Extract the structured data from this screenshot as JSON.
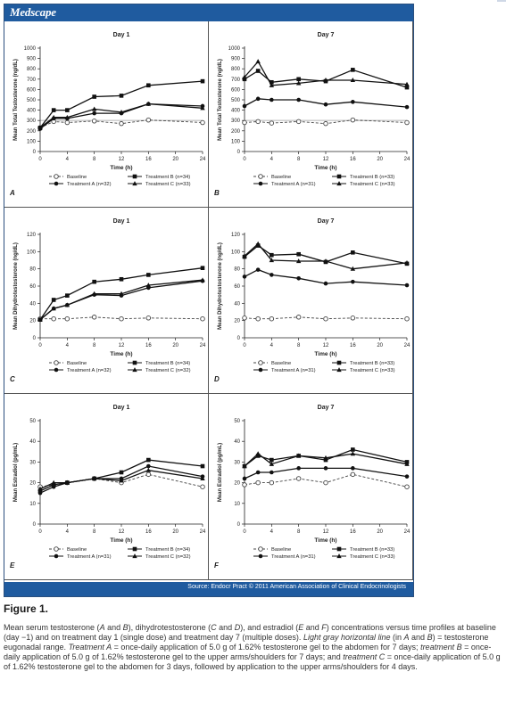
{
  "header": {
    "logo": "Medscape"
  },
  "footer": {
    "source": "Source: Endocr Pract © 2011 American Association of Clinical Endocrinologists"
  },
  "figure": {
    "title": "Figure 1.",
    "caption": [
      {
        "t": "Mean serum testosterone ("
      },
      {
        "t": "A",
        "i": true
      },
      {
        "t": " and "
      },
      {
        "t": "B",
        "i": true
      },
      {
        "t": "), dihydrotestosterone ("
      },
      {
        "t": "C",
        "i": true
      },
      {
        "t": " and "
      },
      {
        "t": "D",
        "i": true
      },
      {
        "t": "), and estradiol ("
      },
      {
        "t": "E",
        "i": true
      },
      {
        "t": " and "
      },
      {
        "t": "F",
        "i": true
      },
      {
        "t": ") concentrations versus time profiles at baseline (day −1) and on treatment day 1 (single dose) and treatment day 7 (multiple doses). "
      },
      {
        "t": "Light gray horizontal line",
        "i": true
      },
      {
        "t": " (in "
      },
      {
        "t": "A",
        "i": true
      },
      {
        "t": " and "
      },
      {
        "t": "B",
        "i": true
      },
      {
        "t": ") = testosterone eugonadal range. "
      },
      {
        "t": "Treatment A",
        "i": true
      },
      {
        "t": " = once-daily application of 5.0 g of 1.62% testosterone gel to the abdomen for 7 days; "
      },
      {
        "t": "treatment B",
        "i": true
      },
      {
        "t": " = once-daily application of 5.0 g of 1.62% testosterone gel to the upper arms/shoulders for 7 days; and "
      },
      {
        "t": "treatment C",
        "i": true
      },
      {
        "t": " = once-daily application of 5.0 g of 1.62% testosterone gel to the abdomen for 3 days, followed by application to the upper arms/shoulders for 4 days."
      }
    ]
  },
  "colors": {
    "brand": "#1f5b9f",
    "line": "#111111",
    "baseline": "#444444",
    "eugonadal": "#c8c8c8"
  },
  "chart_data": [
    {
      "panel": "A",
      "type": "line",
      "title": "Day 1",
      "xlabel": "Time (h)",
      "ylabel": "Mean Total Testosterone (ng/dL)",
      "xlim": [
        0,
        24
      ],
      "ylim": [
        0,
        1000
      ],
      "xticks": [
        0,
        4,
        8,
        12,
        16,
        20,
        24
      ],
      "yticks": [
        0,
        100,
        200,
        300,
        400,
        500,
        600,
        700,
        800,
        900,
        1000
      ],
      "reference_line": 300,
      "series": [
        {
          "name": "Baseline",
          "style": "baseline",
          "x": [
            0,
            2,
            4,
            8,
            12,
            16,
            24
          ],
          "y": [
            230,
            290,
            280,
            295,
            270,
            305,
            280
          ]
        },
        {
          "name": "Treatment A (n=32)",
          "style": "circle",
          "x": [
            0,
            2,
            4,
            8,
            12,
            16,
            24
          ],
          "y": [
            220,
            320,
            320,
            370,
            370,
            460,
            440
          ]
        },
        {
          "name": "Treatment B (n=34)",
          "style": "square",
          "x": [
            0,
            2,
            4,
            8,
            12,
            16,
            24
          ],
          "y": [
            230,
            400,
            400,
            530,
            540,
            640,
            680
          ]
        },
        {
          "name": "Treatment C (n=33)",
          "style": "triangle",
          "x": [
            0,
            2,
            4,
            8,
            12,
            16,
            24
          ],
          "y": [
            230,
            330,
            330,
            410,
            380,
            460,
            420
          ]
        }
      ]
    },
    {
      "panel": "B",
      "type": "line",
      "title": "Day 7",
      "xlabel": "Time (h)",
      "ylabel": "Mean Total Testosterone (ng/dL)",
      "xlim": [
        0,
        24
      ],
      "ylim": [
        0,
        1000
      ],
      "xticks": [
        0,
        4,
        8,
        12,
        16,
        20,
        24
      ],
      "yticks": [
        0,
        100,
        200,
        300,
        400,
        500,
        600,
        700,
        800,
        900,
        1000
      ],
      "reference_line": 300,
      "series": [
        {
          "name": "Baseline",
          "style": "baseline",
          "x": [
            0,
            2,
            4,
            8,
            12,
            16,
            24
          ],
          "y": [
            280,
            290,
            275,
            290,
            270,
            305,
            280
          ]
        },
        {
          "name": "Treatment A (n=31)",
          "style": "circle",
          "x": [
            0,
            2,
            4,
            8,
            12,
            16,
            24
          ],
          "y": [
            440,
            510,
            500,
            500,
            455,
            480,
            430
          ]
        },
        {
          "name": "Treatment B (n=33)",
          "style": "square",
          "x": [
            0,
            2,
            4,
            8,
            12,
            16,
            24
          ],
          "y": [
            700,
            780,
            670,
            700,
            680,
            790,
            620
          ]
        },
        {
          "name": "Treatment C (n=33)",
          "style": "triangle",
          "x": [
            0,
            2,
            4,
            8,
            12,
            16,
            24
          ],
          "y": [
            720,
            870,
            640,
            660,
            690,
            690,
            650
          ]
        }
      ]
    },
    {
      "panel": "C",
      "type": "line",
      "title": "Day 1",
      "xlabel": "Time (h)",
      "ylabel": "Mean Dihydrotestosterone (ng/dL)",
      "xlim": [
        0,
        24
      ],
      "ylim": [
        0,
        120
      ],
      "xticks": [
        0,
        4,
        8,
        12,
        16,
        20,
        24
      ],
      "yticks": [
        0,
        20,
        40,
        60,
        80,
        100,
        120
      ],
      "series": [
        {
          "name": "Baseline",
          "style": "baseline",
          "x": [
            0,
            2,
            4,
            8,
            12,
            16,
            24
          ],
          "y": [
            22,
            22,
            22,
            24,
            22,
            23,
            22
          ]
        },
        {
          "name": "Treatment A (n=32)",
          "style": "circle",
          "x": [
            0,
            2,
            4,
            8,
            12,
            16,
            24
          ],
          "y": [
            21,
            34,
            38,
            50,
            49,
            58,
            66
          ]
        },
        {
          "name": "Treatment B (n=34)",
          "style": "square",
          "x": [
            0,
            2,
            4,
            8,
            12,
            16,
            24
          ],
          "y": [
            21,
            44,
            49,
            65,
            68,
            73,
            81
          ]
        },
        {
          "name": "Treatment C (n=32)",
          "style": "triangle",
          "x": [
            0,
            2,
            4,
            8,
            12,
            16,
            24
          ],
          "y": [
            21,
            34,
            38,
            51,
            51,
            61,
            67
          ]
        }
      ]
    },
    {
      "panel": "D",
      "type": "line",
      "title": "Day 7",
      "xlabel": "Time (h)",
      "ylabel": "Mean Dihydrotestosterone (ng/dL)",
      "xlim": [
        0,
        24
      ],
      "ylim": [
        0,
        120
      ],
      "xticks": [
        0,
        4,
        8,
        12,
        16,
        20,
        24
      ],
      "yticks": [
        0,
        20,
        40,
        60,
        80,
        100,
        120
      ],
      "series": [
        {
          "name": "Baseline",
          "style": "baseline",
          "x": [
            0,
            2,
            4,
            8,
            12,
            16,
            24
          ],
          "y": [
            23,
            22,
            22,
            24,
            22,
            23,
            22
          ]
        },
        {
          "name": "Treatment A (n=31)",
          "style": "circle",
          "x": [
            0,
            2,
            4,
            8,
            12,
            16,
            24
          ],
          "y": [
            71,
            79,
            73,
            69,
            63,
            65,
            61
          ]
        },
        {
          "name": "Treatment B (n=33)",
          "style": "square",
          "x": [
            0,
            2,
            4,
            8,
            12,
            16,
            24
          ],
          "y": [
            94,
            107,
            96,
            97,
            88,
            99,
            86
          ]
        },
        {
          "name": "Treatment C (n=33)",
          "style": "triangle",
          "x": [
            0,
            2,
            4,
            8,
            12,
            16,
            24
          ],
          "y": [
            95,
            109,
            90,
            89,
            89,
            80,
            87
          ]
        }
      ]
    },
    {
      "panel": "E",
      "type": "line",
      "title": "Day 1",
      "xlabel": "Time (h)",
      "ylabel": "Mean Estradiol (pg/mL)",
      "xlim": [
        0,
        24
      ],
      "ylim": [
        0,
        50
      ],
      "xticks": [
        0,
        4,
        8,
        12,
        16,
        20,
        24
      ],
      "yticks": [
        0,
        10,
        20,
        30,
        40,
        50
      ],
      "series": [
        {
          "name": "Baseline",
          "style": "baseline",
          "x": [
            0,
            2,
            4,
            8,
            12,
            16,
            24
          ],
          "y": [
            18,
            19,
            20,
            22,
            20,
            24,
            18
          ]
        },
        {
          "name": "Treatment A (n=31)",
          "style": "circle",
          "x": [
            0,
            2,
            4,
            8,
            12,
            16,
            24
          ],
          "y": [
            15,
            18,
            20,
            22,
            22,
            28,
            23
          ]
        },
        {
          "name": "Treatment B (n=34)",
          "style": "square",
          "x": [
            0,
            2,
            4,
            8,
            12,
            16,
            24
          ],
          "y": [
            16,
            19,
            20,
            22,
            25,
            31,
            28
          ]
        },
        {
          "name": "Treatment C (n=32)",
          "style": "triangle",
          "x": [
            0,
            2,
            4,
            8,
            12,
            16,
            24
          ],
          "y": [
            17,
            20,
            20,
            22,
            21,
            26,
            22
          ]
        }
      ]
    },
    {
      "panel": "F",
      "type": "line",
      "title": "Day 7",
      "xlabel": "Time (h)",
      "ylabel": "Mean Estradiol (pg/mL)",
      "xlim": [
        0,
        24
      ],
      "ylim": [
        0,
        50
      ],
      "xticks": [
        0,
        4,
        8,
        12,
        16,
        20,
        24
      ],
      "yticks": [
        0,
        10,
        20,
        30,
        40,
        50
      ],
      "series": [
        {
          "name": "Baseline",
          "style": "baseline",
          "x": [
            0,
            2,
            4,
            8,
            12,
            16,
            24
          ],
          "y": [
            19,
            20,
            20,
            22,
            20,
            24,
            18
          ]
        },
        {
          "name": "Treatment A (n=31)",
          "style": "circle",
          "x": [
            0,
            2,
            4,
            8,
            12,
            16,
            24
          ],
          "y": [
            22,
            25,
            25,
            27,
            27,
            27,
            23
          ]
        },
        {
          "name": "Treatment B (n=33)",
          "style": "square",
          "x": [
            0,
            2,
            4,
            8,
            12,
            16,
            24
          ],
          "y": [
            28,
            33,
            31,
            33,
            31,
            36,
            30
          ]
        },
        {
          "name": "Treatment C (n=33)",
          "style": "triangle",
          "x": [
            0,
            2,
            4,
            8,
            12,
            16,
            24
          ],
          "y": [
            28,
            34,
            29,
            33,
            32,
            34,
            29
          ]
        }
      ]
    }
  ]
}
